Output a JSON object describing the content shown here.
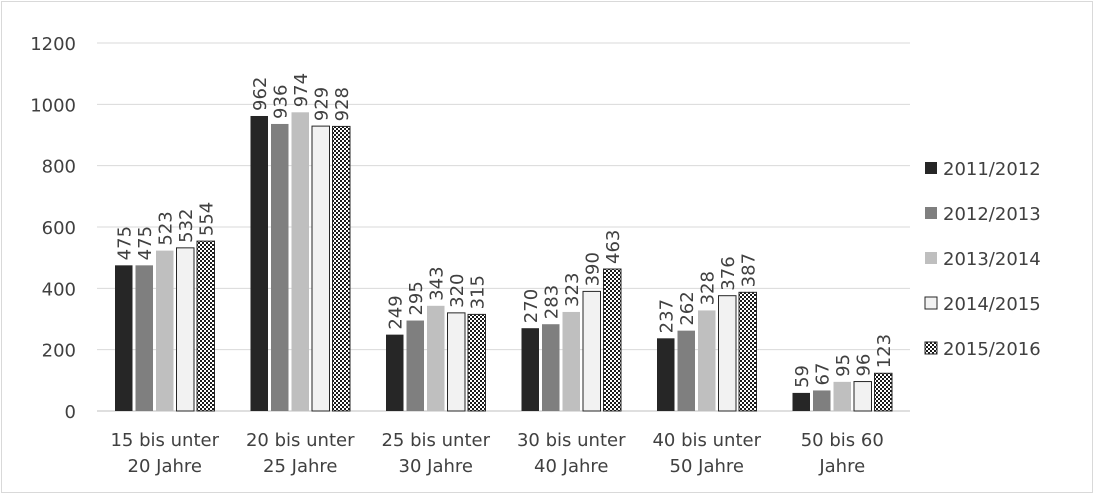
{
  "chart_data": {
    "type": "bar",
    "categories": [
      [
        "15 bis unter",
        "20 Jahre"
      ],
      [
        "20 bis unter",
        "25 Jahre"
      ],
      [
        "25 bis unter",
        "30 Jahre"
      ],
      [
        "30 bis unter",
        "40 Jahre"
      ],
      [
        "40 bis unter",
        "50 Jahre"
      ],
      [
        "50 bis 60",
        "Jahre"
      ]
    ],
    "series": [
      {
        "name": "2011/2012",
        "values": [
          475,
          962,
          249,
          270,
          237,
          59
        ],
        "fill": "#262626",
        "pattern": "solid"
      },
      {
        "name": "2012/2013",
        "values": [
          475,
          936,
          295,
          283,
          262,
          67
        ],
        "fill": "#7f7f7f",
        "pattern": "solid"
      },
      {
        "name": "2013/2014",
        "values": [
          523,
          974,
          343,
          323,
          328,
          95
        ],
        "fill": "#bfbfbf",
        "pattern": "solid"
      },
      {
        "name": "2014/2015",
        "values": [
          532,
          929,
          320,
          390,
          376,
          96
        ],
        "fill": "#f2f2f2",
        "pattern": "outline"
      },
      {
        "name": "2015/2016",
        "values": [
          554,
          928,
          315,
          463,
          387,
          123
        ],
        "fill": "#ffffff",
        "pattern": "dots"
      }
    ],
    "y_ticks": [
      "0",
      "200",
      "400",
      "600",
      "800",
      "1000",
      "1200"
    ],
    "ylim": [
      0,
      1200
    ],
    "grid": true,
    "legend_position": "right",
    "title": "",
    "xlabel": "",
    "ylabel": ""
  }
}
